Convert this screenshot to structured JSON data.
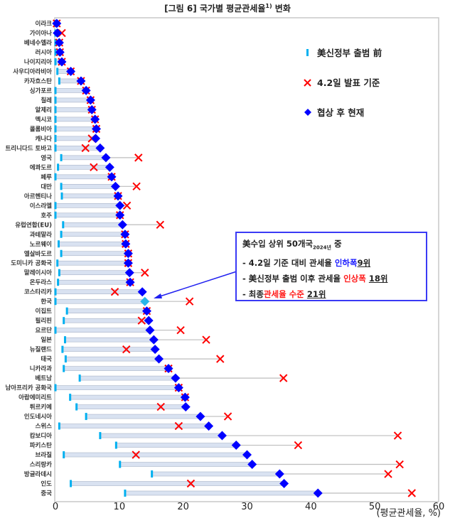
{
  "title": {
    "main": "[그림 6] 국가별 평균관세율",
    "sup": "1)",
    "suffix": " 변화"
  },
  "legend": {
    "pre": "美신정부 출범 前",
    "apr2": "4.2일 발표 기준",
    "now": "협상 후 현재"
  },
  "note": {
    "line1": "美수입 상위 50개국",
    "line1_sub": "2024년",
    "line1_end": " 중",
    "line2_pre": "- 4.2일 기준 대비 관세율 ",
    "line2_hl": "인하폭",
    "line2_rank": "9위",
    "line3_pre": "- 美신정부 출범 이후 관세율 ",
    "line3_hl": "인상폭",
    "line3_rank": "18위",
    "line4_pre": "- 최종",
    "line4_hl": "관세율 수준",
    "line4_rank": "21위"
  },
  "colors": {
    "pre": "#00b0f0",
    "apr2": "#ff0000",
    "now": "#0000ff",
    "korea": "#29b6e8",
    "highlight_label": "#1a1aff",
    "range_bar": "#d9e2f1"
  },
  "chart_data": {
    "type": "dot-range",
    "xlabel": "(평균관세율, %)",
    "xlim": [
      0,
      60
    ],
    "xticks": [
      0,
      10,
      20,
      30,
      40,
      50,
      60
    ],
    "grid": false,
    "legend_position": "top-right",
    "series": [
      {
        "name": "美신정부 출범 前",
        "key": "pre"
      },
      {
        "name": "4.2일 발표 기준",
        "key": "apr2"
      },
      {
        "name": "협상 후 현재",
        "key": "now"
      }
    ],
    "rows": [
      {
        "country": "이라크",
        "pre": 0,
        "apr2": 0.2,
        "now": 0.2
      },
      {
        "country": "가이아나",
        "pre": 0,
        "apr2": 1.0,
        "now": 0.3
      },
      {
        "country": "베네수엘라",
        "pre": 0,
        "apr2": 0.6,
        "now": 0.6
      },
      {
        "country": "러시아",
        "pre": 0,
        "apr2": 0.7,
        "now": 0.7
      },
      {
        "country": "나이지리아",
        "pre": 0,
        "apr2": 1.0,
        "now": 1.0
      },
      {
        "country": "사우디아라비아",
        "pre": 0.3,
        "apr2": 2.4,
        "now": 2.4
      },
      {
        "country": "카자흐스탄",
        "pre": 0.6,
        "apr2": 4.0,
        "now": 4.0
      },
      {
        "country": "싱가포르",
        "pre": 0,
        "apr2": 4.8,
        "now": 4.8
      },
      {
        "country": "칠레",
        "pre": 0,
        "apr2": 5.5,
        "now": 5.5
      },
      {
        "country": "알제리",
        "pre": 0,
        "apr2": 5.7,
        "now": 5.7
      },
      {
        "country": "멕시코",
        "pre": 0,
        "apr2": 6.2,
        "now": 6.2
      },
      {
        "country": "콜롬비아",
        "pre": 0,
        "apr2": 6.4,
        "now": 6.4
      },
      {
        "country": "캐나다",
        "pre": 0,
        "apr2": 5.7,
        "now": 6.3
      },
      {
        "country": "트리니다드 토바고",
        "pre": 0,
        "apr2": 4.7,
        "now": 7.0
      },
      {
        "country": "영국",
        "pre": 0.9,
        "apr2": 13.0,
        "now": 7.9,
        "highlight": true
      },
      {
        "country": "에콰도르",
        "pre": 0.4,
        "apr2": 6.0,
        "now": 8.5
      },
      {
        "country": "페루",
        "pre": 0,
        "apr2": 8.8,
        "now": 8.8
      },
      {
        "country": "대만",
        "pre": 0.9,
        "apr2": 12.7,
        "now": 9.4
      },
      {
        "country": "아르헨티나",
        "pre": 1.0,
        "apr2": 9.8,
        "now": 9.8
      },
      {
        "country": "이스라엘",
        "pre": 0,
        "apr2": 11.2,
        "now": 10.1
      },
      {
        "country": "호주",
        "pre": 0,
        "apr2": 10.1,
        "now": 10.1
      },
      {
        "country": "유럽연합(EU)",
        "pre": 1.2,
        "apr2": 16.4,
        "now": 10.5,
        "highlight": true
      },
      {
        "country": "과테말라",
        "pre": 0.9,
        "apr2": 10.9,
        "now": 10.9
      },
      {
        "country": "노르웨이",
        "pre": 0.5,
        "apr2": 11.0,
        "now": 11.0
      },
      {
        "country": "엘살바도르",
        "pre": 0.9,
        "apr2": 11.4,
        "now": 11.4
      },
      {
        "country": "도미니카 공화국",
        "pre": 0.3,
        "apr2": 11.4,
        "now": 11.4
      },
      {
        "country": "말레이시아",
        "pre": 0.6,
        "apr2": 14.0,
        "now": 11.6
      },
      {
        "country": "온두라스",
        "pre": 0.4,
        "apr2": 11.7,
        "now": 11.7
      },
      {
        "country": "코스타리카",
        "pre": 0,
        "apr2": 9.3,
        "now": 13.6
      },
      {
        "country": "한국",
        "pre": 0,
        "apr2": 21.0,
        "now": 14.0,
        "highlight": true,
        "korea": true
      },
      {
        "country": "이집트",
        "pre": 1.8,
        "apr2": 14.3,
        "now": 14.3
      },
      {
        "country": "필리핀",
        "pre": 1.3,
        "apr2": 13.5,
        "now": 14.6
      },
      {
        "country": "요르단",
        "pre": 0,
        "apr2": 19.6,
        "now": 14.8
      },
      {
        "country": "일본",
        "pre": 1.5,
        "apr2": 23.6,
        "now": 15.4,
        "highlight": true
      },
      {
        "country": "뉴질랜드",
        "pre": 1.1,
        "apr2": 11.1,
        "now": 15.6
      },
      {
        "country": "태국",
        "pre": 1.6,
        "apr2": 25.8,
        "now": 16.2
      },
      {
        "country": "니카라과",
        "pre": 1.3,
        "apr2": 17.7,
        "now": 17.7
      },
      {
        "country": "베트남",
        "pre": 3.8,
        "apr2": 35.7,
        "now": 18.8
      },
      {
        "country": "남아프리카 공화국",
        "pre": 0,
        "apr2": 19.3,
        "now": 19.3
      },
      {
        "country": "아랍에미리트",
        "pre": 2.3,
        "apr2": 20.3,
        "now": 20.3
      },
      {
        "country": "튀르키예",
        "pre": 3.3,
        "apr2": 16.5,
        "now": 20.4
      },
      {
        "country": "인도네시아",
        "pre": 4.8,
        "apr2": 27.0,
        "now": 22.7
      },
      {
        "country": "스위스",
        "pre": 0.6,
        "apr2": 19.3,
        "now": 24.0
      },
      {
        "country": "캄보디아",
        "pre": 7.0,
        "apr2": 53.6,
        "now": 26.1
      },
      {
        "country": "파키스탄",
        "pre": 9.5,
        "apr2": 38.0,
        "now": 28.3
      },
      {
        "country": "브라질",
        "pre": 1.3,
        "apr2": 12.6,
        "now": 30.0
      },
      {
        "country": "스리랑카",
        "pre": 10.1,
        "apr2": 53.9,
        "now": 30.8
      },
      {
        "country": "방글라데시",
        "pre": 15.1,
        "apr2": 52.1,
        "now": 35.1
      },
      {
        "country": "인도",
        "pre": 2.4,
        "apr2": 21.2,
        "now": 35.8
      },
      {
        "country": "중국",
        "pre": 10.9,
        "apr2": 55.8,
        "now": 41.1
      }
    ]
  }
}
